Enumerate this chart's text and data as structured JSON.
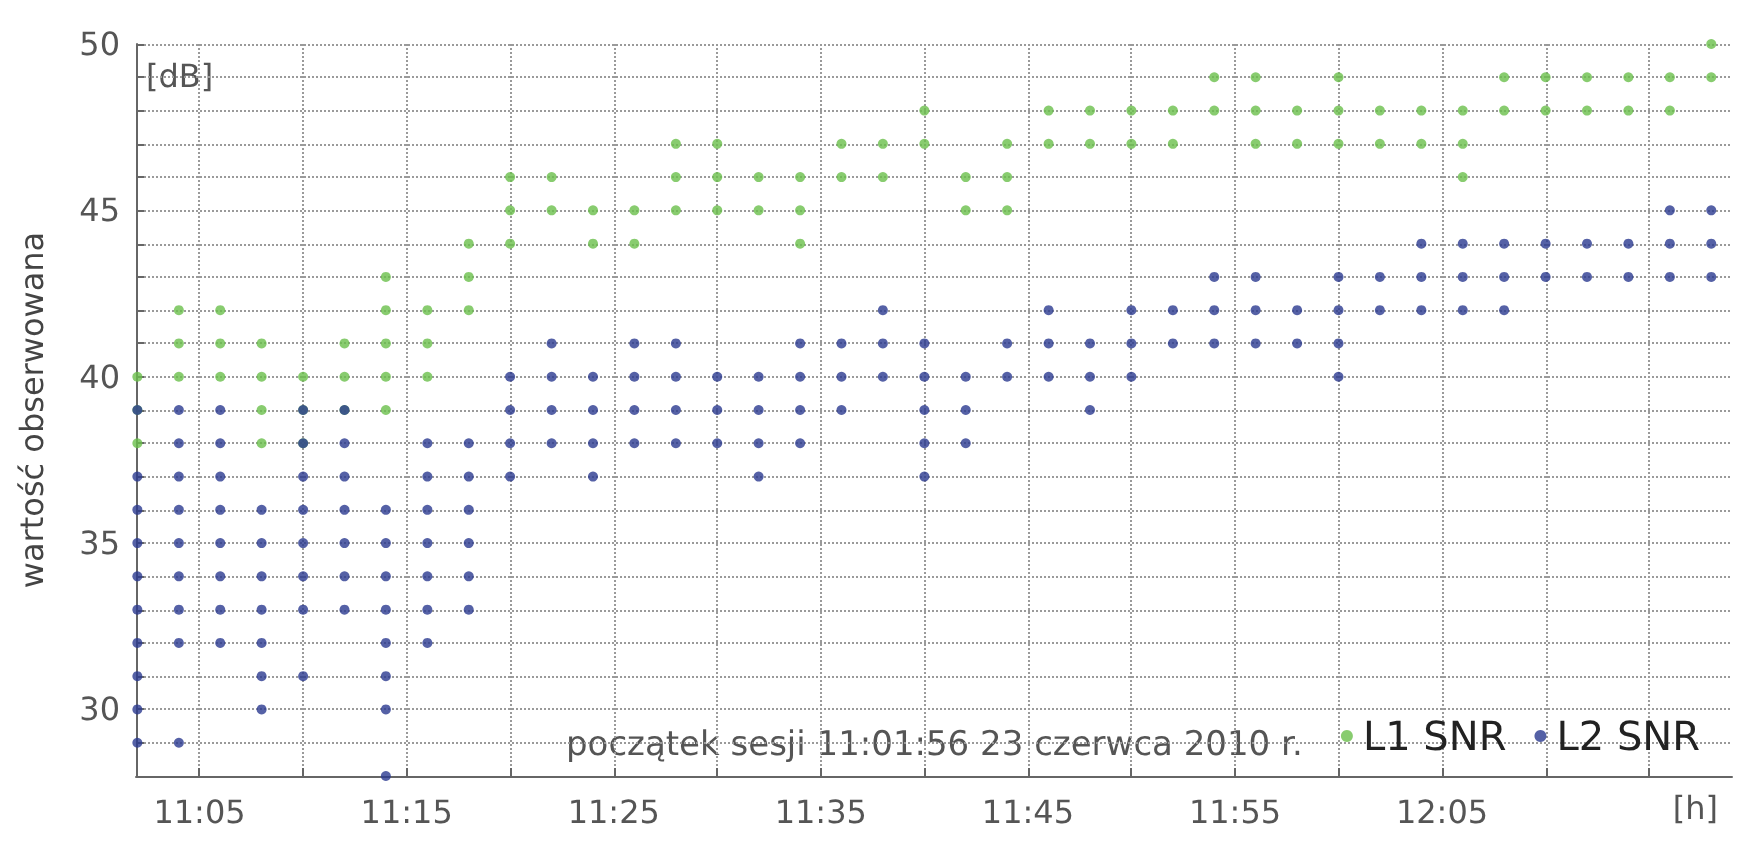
{
  "chart_data": {
    "type": "scatter",
    "ylabel": "wartość obserwowana",
    "xlabel": "[h]",
    "annotations": [
      "[dB]",
      "początek sesji 11:01:56 23 czerwca 2010 r."
    ],
    "xlim": [
      11.0322,
      12.3167
    ],
    "ylim": [
      28,
      50
    ],
    "xticks": [
      {
        "value": 11.0833,
        "label": "11:05"
      },
      {
        "value": 11.1667,
        "label": null
      },
      {
        "value": 11.25,
        "label": "11:15"
      },
      {
        "value": 11.3333,
        "label": null
      },
      {
        "value": 11.4167,
        "label": "11:25"
      },
      {
        "value": 11.5,
        "label": null
      },
      {
        "value": 11.5833,
        "label": "11:35"
      },
      {
        "value": 11.6667,
        "label": null
      },
      {
        "value": 11.75,
        "label": "11:45"
      },
      {
        "value": 11.8333,
        "label": null
      },
      {
        "value": 11.9167,
        "label": "11:55"
      },
      {
        "value": 12.0,
        "label": null
      },
      {
        "value": 12.0833,
        "label": "12:05"
      },
      {
        "value": 12.1667,
        "label": null
      },
      {
        "value": 12.25,
        "label": null
      }
    ],
    "yticks": [
      {
        "value": 28,
        "label": null
      },
      {
        "value": 29,
        "label": null
      },
      30,
      {
        "value": 31,
        "label": null
      },
      {
        "value": 32,
        "label": null
      },
      {
        "value": 33,
        "label": null
      },
      {
        "value": 34,
        "label": null
      },
      35,
      {
        "value": 36,
        "label": null
      },
      {
        "value": 37,
        "label": null
      },
      {
        "value": 38,
        "label": null
      },
      {
        "value": 39,
        "label": null
      },
      40,
      {
        "value": 41,
        "label": null
      },
      {
        "value": 42,
        "label": null
      },
      {
        "value": 43,
        "label": null
      },
      {
        "value": 44,
        "label": null
      },
      45,
      {
        "value": 46,
        "label": null
      },
      {
        "value": 47,
        "label": null
      },
      {
        "value": 48,
        "label": null
      },
      {
        "value": 49,
        "label": null
      },
      50
    ],
    "grid": true,
    "legend": "bottom right",
    "marker": "circle",
    "series": [
      {
        "name": "L1 SNR",
        "color": "#6abf4b",
        "x": [
          11.0333,
          11.1333,
          11.1667,
          11.0333,
          11.1333,
          11.1667,
          11.2,
          11.2333,
          11.0333,
          11.0667,
          11.1,
          11.1333,
          11.1667,
          11.2,
          11.2333,
          11.2667,
          11.0667,
          11.1,
          11.1333,
          11.2,
          11.2333,
          11.2667,
          11.0667,
          11.1,
          11.2333,
          11.2667,
          11.3,
          11.2333,
          11.3,
          11.3,
          11.3333,
          11.4,
          11.4333,
          11.5667,
          11.3333,
          11.3667,
          11.4,
          11.4333,
          11.4667,
          11.5,
          11.5333,
          11.5667,
          11.7,
          11.7333,
          11.3333,
          11.3667,
          11.4667,
          11.5,
          11.5333,
          11.5667,
          11.6,
          11.6333,
          11.7,
          11.7333,
          12.1,
          11.4667,
          11.5,
          11.6,
          11.6333,
          11.6667,
          11.7333,
          11.7667,
          11.8,
          11.8333,
          11.8667,
          11.9333,
          11.9667,
          12.0,
          12.0333,
          12.0667,
          12.1,
          11.6667,
          11.7667,
          11.8,
          11.8333,
          11.8667,
          11.9,
          11.9333,
          11.9667,
          12.0,
          12.0333,
          12.0667,
          12.1,
          12.1333,
          12.1667,
          12.2,
          12.2333,
          12.2667,
          11.9,
          11.9333,
          12.0,
          12.1333,
          12.1667,
          12.2,
          12.2333,
          12.2667,
          12.3,
          12.3
        ],
        "values": [
          38,
          38,
          38,
          39,
          39,
          39,
          39,
          39,
          40,
          40,
          40,
          40,
          40,
          40,
          40,
          40,
          41,
          41,
          41,
          41,
          41,
          41,
          42,
          42,
          42,
          42,
          42,
          43,
          43,
          44,
          44,
          44,
          44,
          44,
          45,
          45,
          45,
          45,
          45,
          45,
          45,
          45,
          45,
          45,
          46,
          46,
          46,
          46,
          46,
          46,
          46,
          46,
          46,
          46,
          46,
          47,
          47,
          47,
          47,
          47,
          47,
          47,
          47,
          47,
          47,
          47,
          47,
          47,
          47,
          47,
          47,
          48,
          48,
          48,
          48,
          48,
          48,
          48,
          48,
          48,
          48,
          48,
          48,
          48,
          48,
          48,
          48,
          48,
          49,
          49,
          49,
          49,
          49,
          49,
          49,
          49,
          49,
          50
        ]
      },
      {
        "name": "L2 SNR",
        "color": "#2b3990",
        "x": [
          11.2333,
          11.0333,
          11.0667,
          11.0333,
          11.1333,
          11.2333,
          11.0333,
          11.1333,
          11.1667,
          11.2333,
          11.0333,
          11.0667,
          11.1,
          11.1333,
          11.2333,
          11.2667,
          11.0333,
          11.0667,
          11.1,
          11.1333,
          11.1667,
          11.2,
          11.2333,
          11.2667,
          11.3,
          11.0333,
          11.0667,
          11.1,
          11.1333,
          11.1667,
          11.2,
          11.2333,
          11.2667,
          11.3,
          11.0333,
          11.0667,
          11.1,
          11.1333,
          11.1667,
          11.2,
          11.2333,
          11.2667,
          11.3,
          11.0333,
          11.0667,
          11.1,
          11.1333,
          11.1667,
          11.2,
          11.2333,
          11.2667,
          11.3,
          11.0333,
          11.0667,
          11.1,
          11.1667,
          11.2,
          11.2667,
          11.3,
          11.3333,
          11.4,
          11.5333,
          11.6667,
          11.0667,
          11.1,
          11.1667,
          11.2,
          11.2667,
          11.3,
          11.3333,
          11.3667,
          11.4,
          11.4333,
          11.4667,
          11.5,
          11.5333,
          11.5667,
          11.6667,
          11.7,
          11.0333,
          11.0667,
          11.1,
          11.1667,
          11.2,
          11.3333,
          11.3667,
          11.4,
          11.4333,
          11.4667,
          11.5,
          11.5333,
          11.5667,
          11.6,
          11.6667,
          11.7,
          11.8,
          11.3333,
          11.3667,
          11.4,
          11.4333,
          11.4667,
          11.5,
          11.5333,
          11.5667,
          11.6,
          11.6333,
          11.6667,
          11.7,
          11.7333,
          11.7667,
          11.8,
          11.8333,
          12.0,
          11.3667,
          11.4333,
          11.4667,
          11.5667,
          11.6,
          11.6333,
          11.6667,
          11.7333,
          11.7667,
          11.8,
          11.8333,
          11.8667,
          11.9,
          11.9333,
          11.9667,
          12.0,
          11.6333,
          11.7667,
          11.8333,
          11.8667,
          11.9,
          11.9333,
          11.9667,
          12.0,
          12.0333,
          12.0667,
          12.1,
          12.1333,
          11.9,
          11.9333,
          12.0,
          12.0333,
          12.0667,
          12.1,
          12.1333,
          12.1667,
          12.2,
          12.2333,
          12.2667,
          12.3,
          12.0667,
          12.1,
          12.1333,
          12.1667,
          12.2,
          12.2333,
          12.2667,
          12.3,
          12.2667,
          12.3
        ],
        "values": [
          28,
          29,
          29,
          30,
          30,
          30,
          31,
          31,
          31,
          31,
          32,
          32,
          32,
          32,
          32,
          32,
          33,
          33,
          33,
          33,
          33,
          33,
          33,
          33,
          33,
          34,
          34,
          34,
          34,
          34,
          34,
          34,
          34,
          34,
          35,
          35,
          35,
          35,
          35,
          35,
          35,
          35,
          35,
          36,
          36,
          36,
          36,
          36,
          36,
          36,
          36,
          36,
          37,
          37,
          37,
          37,
          37,
          37,
          37,
          37,
          37,
          37,
          37,
          38,
          38,
          38,
          38,
          38,
          38,
          38,
          38,
          38,
          38,
          38,
          38,
          38,
          38,
          38,
          38,
          39,
          39,
          39,
          39,
          39,
          39,
          39,
          39,
          39,
          39,
          39,
          39,
          39,
          39,
          39,
          39,
          39,
          40,
          40,
          40,
          40,
          40,
          40,
          40,
          40,
          40,
          40,
          40,
          40,
          40,
          40,
          40,
          40,
          40,
          41,
          41,
          41,
          41,
          41,
          41,
          41,
          41,
          41,
          41,
          41,
          41,
          41,
          41,
          41,
          41,
          42,
          42,
          42,
          42,
          42,
          42,
          42,
          42,
          42,
          42,
          42,
          42,
          43,
          43,
          43,
          43,
          43,
          43,
          43,
          43,
          43,
          43,
          43,
          43,
          44,
          44,
          44,
          44,
          44,
          44,
          44,
          44,
          45,
          45
        ]
      }
    ]
  }
}
